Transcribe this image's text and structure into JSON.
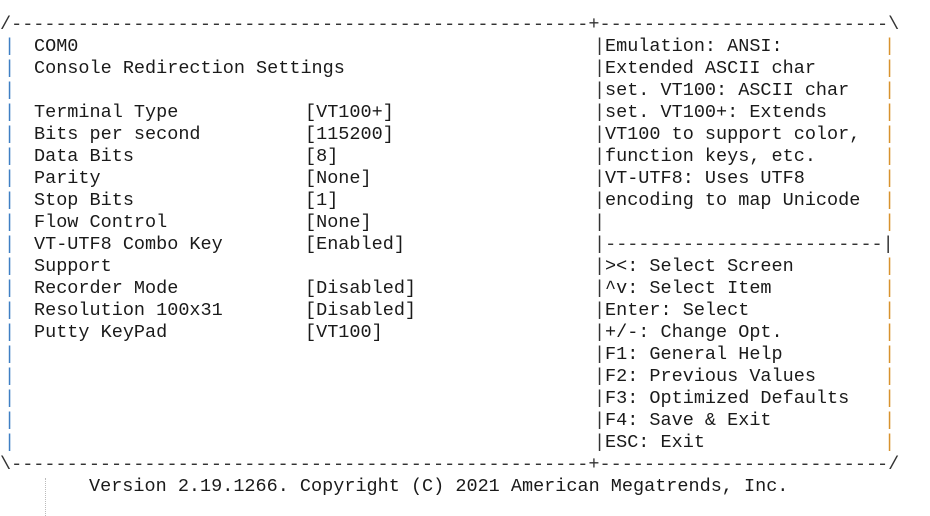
{
  "header": {
    "title": "COM0",
    "subtitle": "Console Redirection Settings"
  },
  "settings": [
    {
      "label": "Terminal Type",
      "value": "[VT100+]"
    },
    {
      "label": "Bits per second",
      "value": "[115200]"
    },
    {
      "label": "Data Bits",
      "value": "[8]"
    },
    {
      "label": "Parity",
      "value": "[None]"
    },
    {
      "label": "Stop Bits",
      "value": "[1]"
    },
    {
      "label": "Flow Control",
      "value": "[None]"
    },
    {
      "label": "VT-UTF8 Combo Key",
      "value": "[Enabled]",
      "label_cont": "Support"
    },
    {
      "label": "Recorder Mode",
      "value": "[Disabled]"
    },
    {
      "label": "Resolution 100x31",
      "value": "[Disabled]"
    },
    {
      "label": "Putty KeyPad",
      "value": "[VT100]"
    }
  ],
  "help": {
    "lines": [
      "Emulation: ANSI:",
      "Extended ASCII char",
      "set. VT100: ASCII char",
      "set. VT100+: Extends",
      "VT100 to support color,",
      "function keys, etc.",
      "VT-UTF8: Uses UTF8",
      "encoding to map Unicode"
    ]
  },
  "keys": [
    "><: Select Screen",
    "^v: Select Item",
    "Enter: Select",
    "+/-: Change Opt.",
    "F1: General Help",
    "F2: Previous Values",
    "F3: Optimized Defaults",
    "F4: Save & Exit",
    "ESC: Exit"
  ],
  "footer": {
    "version": "Version 2.19.1266. Copyright (C) 2021 American Megatrends, Inc."
  },
  "colors": {
    "left_border": "#3f7fc4",
    "right_border": "#d8922e",
    "text": "#1a1a1a"
  }
}
